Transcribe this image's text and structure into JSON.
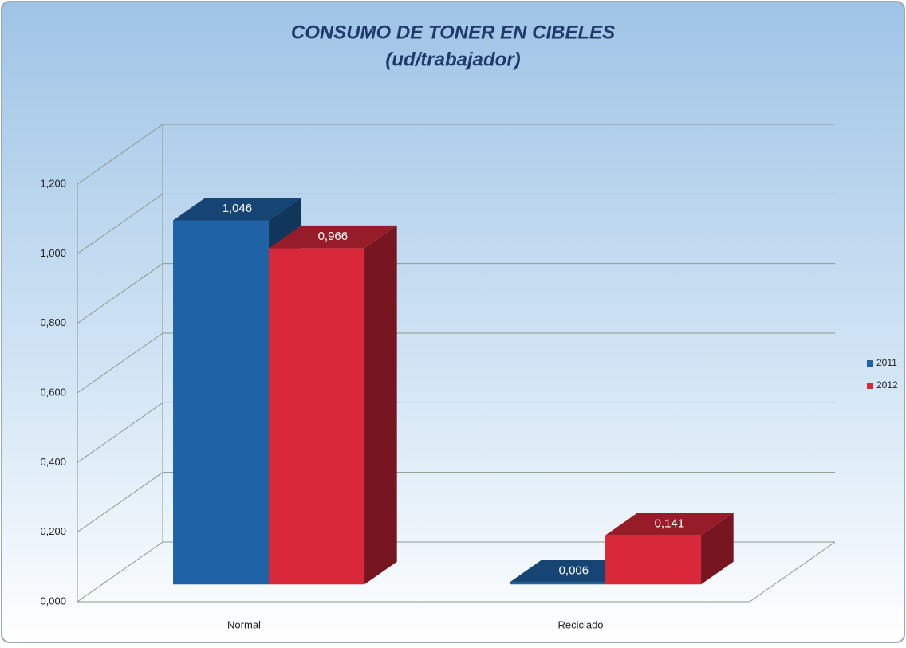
{
  "chart_data": {
    "type": "bar3d",
    "title": "CONSUMO DE TONER EN CIBELES",
    "subtitle": "(ud/trabajador)",
    "categories": [
      "Normal",
      "Reciclado"
    ],
    "series": [
      {
        "name": "2011",
        "color": "#1f63a6",
        "values": [
          1.046,
          0.006
        ],
        "value_labels": [
          "1,046",
          "0,006"
        ]
      },
      {
        "name": "2012",
        "color": "#d8283a",
        "values": [
          0.966,
          0.141
        ],
        "value_labels": [
          "0,966",
          "0,141"
        ]
      }
    ],
    "ylim": [
      0,
      1.2
    ],
    "yticks": [
      {
        "value": 0,
        "label": "0,000"
      },
      {
        "value": 0.2,
        "label": "0,200"
      },
      {
        "value": 0.4,
        "label": "0,400"
      },
      {
        "value": 0.6,
        "label": "0,600"
      },
      {
        "value": 0.8,
        "label": "0,800"
      },
      {
        "value": 1.0,
        "label": "1,000"
      },
      {
        "value": 1.2,
        "label": "1,200"
      }
    ],
    "grid": true,
    "legend": "right"
  }
}
